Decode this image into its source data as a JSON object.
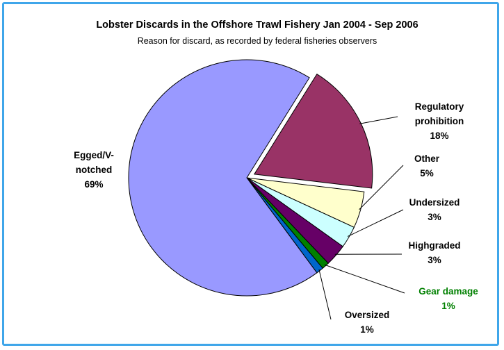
{
  "chart_data": {
    "type": "pie",
    "title": "Lobster Discards in the Offshore Trawl Fishery Jan 2004 - Sep 2006",
    "subtitle": "Reason for discard, as recorded by federal fisheries observers",
    "slices": [
      {
        "label_lines": [
          "Regulatory",
          "prohibition"
        ],
        "value_text": "18%",
        "value": 18,
        "color": "#993366",
        "label_color": "#000000",
        "exploded": true
      },
      {
        "label_lines": [
          "Other"
        ],
        "value_text": "5%",
        "value": 5,
        "color": "#ffffcc",
        "label_color": "#000000",
        "exploded": false
      },
      {
        "label_lines": [
          "Undersized"
        ],
        "value_text": "3%",
        "value": 3,
        "color": "#ccffff",
        "label_color": "#000000",
        "exploded": false
      },
      {
        "label_lines": [
          "Highgraded"
        ],
        "value_text": "3%",
        "value": 3,
        "color": "#660066",
        "label_color": "#000000",
        "exploded": false
      },
      {
        "label_lines": [
          "Gear damage"
        ],
        "value_text": "1%",
        "value": 1,
        "color": "#008000",
        "label_color": "#008000",
        "exploded": false
      },
      {
        "label_lines": [
          "Oversized"
        ],
        "value_text": "1%",
        "value": 1,
        "color": "#0066cc",
        "label_color": "#000000",
        "exploded": false
      },
      {
        "label_lines": [
          "Egged/V-",
          "notched"
        ],
        "value_text": "69%",
        "value": 69,
        "color": "#9999ff",
        "label_color": "#000000",
        "exploded": false
      }
    ],
    "legend": "none"
  }
}
